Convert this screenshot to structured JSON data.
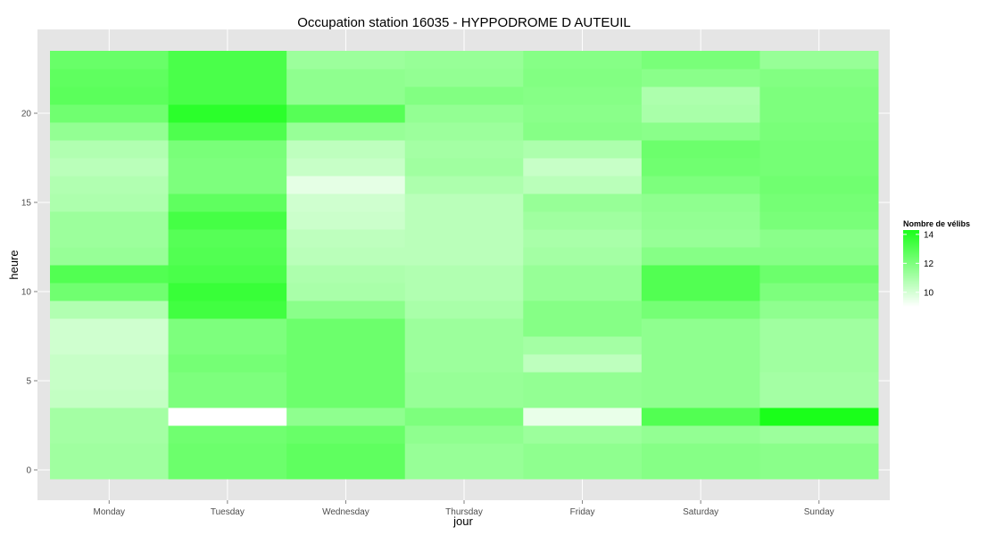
{
  "chart_data": {
    "type": "heatmap",
    "title": "Occupation station 16035 - HYPPODROME D AUTEUIL",
    "xlabel": "jour",
    "ylabel": "heure",
    "categories": [
      "Monday",
      "Tuesday",
      "Wednesday",
      "Thursday",
      "Friday",
      "Saturday",
      "Sunday"
    ],
    "y": [
      0,
      1,
      2,
      3,
      4,
      5,
      6,
      7,
      8,
      9,
      10,
      11,
      12,
      13,
      14,
      15,
      16,
      17,
      18,
      19,
      20,
      21,
      22,
      23
    ],
    "y_ticks": [
      0,
      5,
      10,
      15,
      20
    ],
    "ylim": [
      -0.5,
      23.5
    ],
    "values": [
      [
        11.2,
        12.4,
        12.7,
        11.4,
        11.6,
        11.8,
        11.7
      ],
      [
        11.2,
        12.4,
        12.7,
        11.4,
        11.6,
        11.8,
        11.7
      ],
      [
        11.1,
        12.3,
        12.5,
        11.6,
        11.3,
        11.5,
        11.3
      ],
      [
        11.1,
        8.9,
        11.6,
        12.0,
        9.5,
        13.0,
        14.3
      ],
      [
        10.4,
        12.0,
        12.4,
        11.4,
        11.5,
        11.6,
        11.1
      ],
      [
        10.3,
        12.0,
        12.4,
        11.4,
        11.5,
        11.6,
        11.1
      ],
      [
        10.3,
        12.2,
        12.4,
        11.3,
        10.5,
        11.6,
        11.2
      ],
      [
        10.1,
        12.0,
        12.4,
        11.3,
        11.1,
        11.6,
        11.2
      ],
      [
        10.1,
        12.0,
        12.4,
        11.3,
        11.8,
        11.6,
        11.2
      ],
      [
        10.8,
        13.4,
        11.7,
        11.0,
        11.8,
        12.2,
        11.6
      ],
      [
        12.3,
        13.6,
        11.0,
        10.8,
        11.4,
        13.0,
        12.0
      ],
      [
        13.0,
        13.2,
        10.9,
        10.8,
        11.4,
        13.0,
        12.4
      ],
      [
        11.4,
        13.0,
        10.6,
        10.6,
        11.1,
        11.8,
        11.8
      ],
      [
        11.3,
        12.9,
        10.5,
        10.6,
        11.0,
        11.4,
        11.7
      ],
      [
        11.3,
        13.3,
        10.2,
        10.6,
        11.2,
        11.5,
        12.1
      ],
      [
        10.9,
        12.7,
        10.1,
        10.6,
        11.4,
        11.6,
        12.2
      ],
      [
        10.8,
        12.0,
        9.6,
        10.9,
        10.6,
        12.0,
        12.3
      ],
      [
        10.6,
        12.0,
        10.3,
        11.2,
        10.3,
        12.3,
        12.2
      ],
      [
        10.8,
        12.1,
        10.5,
        11.1,
        10.9,
        12.4,
        12.2
      ],
      [
        11.5,
        13.1,
        11.4,
        11.3,
        11.8,
        11.7,
        12.1
      ],
      [
        12.3,
        13.9,
        12.9,
        11.5,
        11.7,
        11.0,
        12.0
      ],
      [
        12.8,
        13.2,
        11.6,
        11.9,
        11.8,
        10.9,
        12.0
      ],
      [
        12.7,
        13.2,
        11.6,
        11.5,
        11.9,
        11.7,
        11.9
      ],
      [
        12.5,
        13.2,
        11.3,
        11.4,
        11.8,
        12.1,
        11.4
      ]
    ],
    "legend": {
      "title": "Nombre de vélibs",
      "ticks": [
        10,
        12,
        14
      ],
      "range": [
        9,
        14.3
      ],
      "low_color": "#ffffff",
      "high_color": "#1aff1a",
      "placement": "right"
    },
    "grid": true,
    "panel_background": "#e5e5e5"
  }
}
